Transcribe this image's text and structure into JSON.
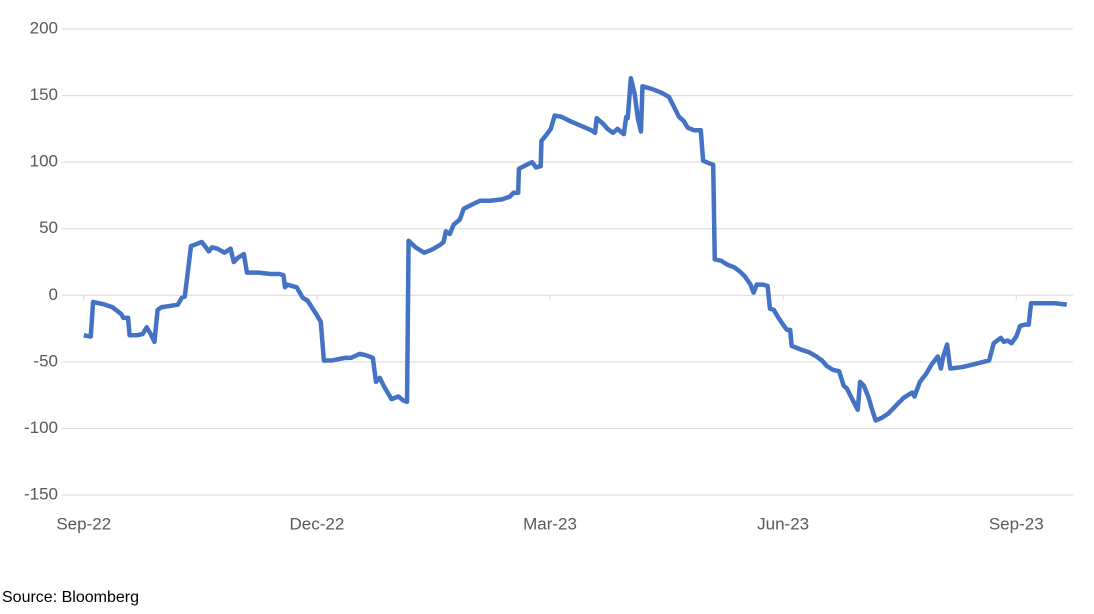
{
  "chart_data": {
    "type": "line",
    "x": [
      0,
      0.09,
      0.12,
      0.27,
      0.37,
      0.48,
      0.51,
      0.57,
      0.59,
      0.69,
      0.76,
      0.81,
      0.86,
      0.91,
      0.95,
      1.0,
      1.11,
      1.21,
      1.26,
      1.3,
      1.38,
      1.43,
      1.52,
      1.61,
      1.65,
      1.72,
      1.81,
      1.89,
      1.93,
      1.98,
      2.06,
      2.1,
      2.25,
      2.41,
      2.52,
      2.57,
      2.59,
      2.62,
      2.74,
      2.82,
      2.88,
      2.99,
      3.05,
      3.09,
      3.19,
      3.36,
      3.44,
      3.55,
      3.63,
      3.72,
      3.76,
      3.81,
      3.86,
      3.96,
      4.05,
      4.11,
      4.16,
      4.18,
      4.27,
      4.38,
      4.47,
      4.59,
      4.63,
      4.66,
      4.71,
      4.76,
      4.84,
      4.89,
      4.99,
      5.1,
      5.23,
      5.38,
      5.48,
      5.53,
      5.59,
      5.6,
      5.7,
      5.77,
      5.82,
      5.88,
      5.89,
      5.96,
      6.01,
      6.06,
      6.15,
      6.25,
      6.41,
      6.53,
      6.58,
      6.6,
      6.68,
      6.74,
      6.81,
      6.87,
      6.95,
      6.98,
      7.0,
      7.04,
      7.09,
      7.13,
      7.17,
      7.19,
      7.31,
      7.44,
      7.53,
      7.66,
      7.72,
      7.77,
      7.85,
      7.94,
      7.97,
      8.1,
      8.12,
      8.2,
      8.28,
      8.37,
      8.44,
      8.51,
      8.58,
      8.62,
      8.66,
      8.74,
      8.8,
      8.83,
      8.88,
      8.94,
      9.01,
      9.05,
      9.09,
      9.11,
      9.24,
      9.34,
      9.43,
      9.5,
      9.56,
      9.64,
      9.72,
      9.78,
      9.82,
      9.88,
      9.96,
      9.99,
      10.04,
      10.1,
      10.14,
      10.19,
      10.27,
      10.35,
      10.45,
      10.55,
      10.66,
      10.69,
      10.76,
      10.84,
      10.91,
      10.99,
      11.03,
      11.06,
      11.11,
      11.15,
      11.3,
      11.44,
      11.58,
      11.65,
      11.71,
      11.8,
      11.84,
      11.89,
      11.94,
      12.0,
      12.05,
      12.11,
      12.16,
      12.19,
      12.3,
      12.5,
      12.65
    ],
    "series": [
      {
        "color": "#4472c4",
        "values": [
          -30,
          -31,
          -5,
          -7,
          -9,
          -14,
          -17,
          -17,
          -30,
          -30,
          -29,
          -24,
          -29,
          -35,
          -11,
          -9,
          -8,
          -7,
          -2,
          -1,
          37,
          38,
          40,
          33,
          36,
          35,
          32,
          35,
          25,
          28,
          31,
          17,
          17,
          16,
          16,
          15,
          6,
          8,
          6,
          -2,
          -4,
          -14,
          -20,
          -49,
          -49,
          -47,
          -47,
          -44,
          -45,
          -47,
          -65,
          -62,
          -68,
          -78,
          -76,
          -79,
          -80,
          41,
          36,
          32,
          34,
          38,
          40,
          48,
          46,
          53,
          57,
          65,
          68,
          71,
          71,
          72,
          74,
          77,
          77,
          95,
          98,
          100,
          96,
          97,
          116,
          121,
          125,
          135,
          134,
          131,
          127,
          124,
          122,
          133,
          129,
          125,
          122,
          125,
          121,
          134,
          133,
          163,
          151,
          133,
          123,
          157,
          155,
          152,
          149,
          134,
          131,
          126,
          124,
          124,
          101,
          98,
          27,
          26,
          23,
          21,
          18,
          14,
          8,
          2,
          8,
          8,
          7,
          -10,
          -11,
          -17,
          -23,
          -26,
          -26,
          -38,
          -41,
          -43,
          -46,
          -49,
          -53,
          -56,
          -57,
          -68,
          -70,
          -77,
          -86,
          -65,
          -68,
          -77,
          -85,
          -94,
          -92,
          -89,
          -83,
          -77,
          -73,
          -76,
          -65,
          -59,
          -52,
          -46,
          -55,
          -46,
          -37,
          -55,
          -54,
          -52,
          -50,
          -49,
          -36,
          -32,
          -35,
          -34,
          -36,
          -31,
          -23,
          -22,
          -22,
          -6,
          -6,
          -6,
          -7
        ]
      }
    ],
    "xlim": [
      -0.28,
      12.73
    ],
    "xticks": [
      {
        "value": 0,
        "label": "Sep-22"
      },
      {
        "value": 3,
        "label": "Dec-22"
      },
      {
        "value": 6,
        "label": "Mar-23"
      },
      {
        "value": 9,
        "label": "Jun-23"
      },
      {
        "value": 12,
        "label": "Sep-23"
      }
    ],
    "ylim": [
      -150,
      200
    ],
    "yticks": [
      -150,
      -100,
      -50,
      0,
      50,
      100,
      150,
      200
    ],
    "grid": true,
    "source": "Source: Bloomberg"
  }
}
